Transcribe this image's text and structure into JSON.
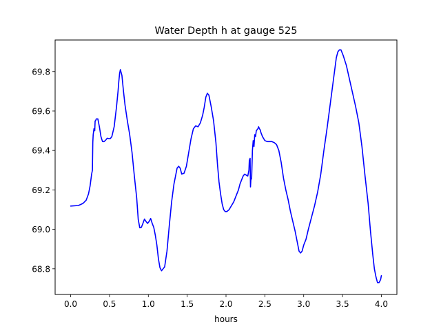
{
  "chart_data": {
    "type": "line",
    "title": "Water Depth h at gauge 525",
    "xlabel": "hours",
    "ylabel": "",
    "xlim": [
      -0.2,
      4.2
    ],
    "ylim": [
      68.67,
      69.96
    ],
    "xticks": [
      0.0,
      0.5,
      1.0,
      1.5,
      2.0,
      2.5,
      3.0,
      3.5,
      4.0
    ],
    "xtick_labels": [
      "0.0",
      "0.5",
      "1.0",
      "1.5",
      "2.0",
      "2.5",
      "3.0",
      "3.5",
      "4.0"
    ],
    "yticks": [
      68.8,
      69.0,
      69.2,
      69.4,
      69.6,
      69.8
    ],
    "ytick_labels": [
      "68.8",
      "69.0",
      "69.2",
      "69.4",
      "69.6",
      "69.8"
    ],
    "grid": false,
    "series": [
      {
        "name": "",
        "color": "#0000ff",
        "x": [
          0.0,
          0.1,
          0.16,
          0.2,
          0.23,
          0.25,
          0.27,
          0.28,
          0.285,
          0.29,
          0.3,
          0.31,
          0.315,
          0.32,
          0.33,
          0.35,
          0.37,
          0.39,
          0.41,
          0.43,
          0.45,
          0.47,
          0.49,
          0.51,
          0.53,
          0.56,
          0.59,
          0.61,
          0.62,
          0.63,
          0.64,
          0.66,
          0.68,
          0.7,
          0.73,
          0.76,
          0.79,
          0.82,
          0.85,
          0.87,
          0.89,
          0.91,
          0.93,
          0.95,
          0.97,
          0.99,
          1.01,
          1.03,
          1.05,
          1.07,
          1.09,
          1.11,
          1.13,
          1.15,
          1.17,
          1.19,
          1.21,
          1.24,
          1.27,
          1.3,
          1.33,
          1.35,
          1.37,
          1.39,
          1.41,
          1.43,
          1.46,
          1.49,
          1.52,
          1.55,
          1.58,
          1.61,
          1.64,
          1.67,
          1.7,
          1.72,
          1.74,
          1.76,
          1.78,
          1.81,
          1.84,
          1.87,
          1.89,
          1.91,
          1.93,
          1.95,
          1.97,
          1.99,
          2.01,
          2.04,
          2.07,
          2.1,
          2.13,
          2.16,
          2.18,
          2.2,
          2.22,
          2.24,
          2.26,
          2.28,
          2.29,
          2.295,
          2.3,
          2.31,
          2.315,
          2.32,
          2.33,
          2.34,
          2.35,
          2.36,
          2.37,
          2.38,
          2.39,
          2.4,
          2.41,
          2.42,
          2.43,
          2.44,
          2.45,
          2.47,
          2.5,
          2.53,
          2.56,
          2.59,
          2.62,
          2.65,
          2.68,
          2.71,
          2.74,
          2.77,
          2.8,
          2.83,
          2.86,
          2.89,
          2.92,
          2.94,
          2.96,
          2.98,
          3.0,
          3.03,
          3.06,
          3.1,
          3.14,
          3.18,
          3.22,
          3.26,
          3.3,
          3.33,
          3.36,
          3.38,
          3.4,
          3.42,
          3.44,
          3.46,
          3.48,
          3.51,
          3.55,
          3.59,
          3.63,
          3.67,
          3.71,
          3.75,
          3.79,
          3.83,
          3.86,
          3.89,
          3.91,
          3.93,
          3.95,
          3.97,
          3.99,
          4.0
        ],
        "y": [
          69.118,
          69.121,
          69.132,
          69.148,
          69.18,
          69.22,
          69.28,
          69.3,
          69.44,
          69.48,
          69.51,
          69.5,
          69.55,
          69.55,
          69.56,
          69.56,
          69.52,
          69.47,
          69.445,
          69.445,
          69.452,
          69.462,
          69.46,
          69.46,
          69.47,
          69.52,
          69.62,
          69.7,
          69.75,
          69.79,
          69.81,
          69.78,
          69.7,
          69.63,
          69.55,
          69.48,
          69.39,
          69.27,
          69.16,
          69.05,
          69.008,
          69.01,
          69.03,
          69.052,
          69.04,
          69.03,
          69.04,
          69.055,
          69.03,
          69.01,
          68.97,
          68.92,
          68.85,
          68.805,
          68.79,
          68.8,
          68.81,
          68.89,
          69.02,
          69.14,
          69.23,
          69.27,
          69.31,
          69.32,
          69.31,
          69.28,
          69.285,
          69.32,
          69.39,
          69.46,
          69.51,
          69.525,
          69.52,
          69.54,
          69.58,
          69.62,
          69.67,
          69.69,
          69.68,
          69.62,
          69.55,
          69.44,
          69.33,
          69.24,
          69.18,
          69.13,
          69.1,
          69.09,
          69.09,
          69.1,
          69.12,
          69.14,
          69.17,
          69.2,
          69.23,
          69.25,
          69.27,
          69.28,
          69.275,
          69.27,
          69.29,
          69.3,
          69.35,
          69.36,
          69.215,
          69.25,
          69.26,
          69.4,
          69.45,
          69.42,
          69.48,
          69.47,
          69.5,
          69.505,
          69.51,
          69.52,
          69.51,
          69.505,
          69.49,
          69.47,
          69.45,
          69.445,
          69.445,
          69.445,
          69.44,
          69.43,
          69.4,
          69.34,
          69.26,
          69.2,
          69.15,
          69.09,
          69.04,
          68.99,
          68.93,
          68.89,
          68.88,
          68.89,
          68.92,
          68.95,
          69.0,
          69.06,
          69.12,
          69.19,
          69.28,
          69.4,
          69.51,
          69.6,
          69.69,
          69.75,
          69.81,
          69.87,
          69.9,
          69.91,
          69.91,
          69.88,
          69.83,
          69.76,
          69.69,
          69.62,
          69.54,
          69.42,
          69.27,
          69.13,
          68.99,
          68.87,
          68.8,
          68.76,
          68.73,
          68.73,
          68.745,
          68.765
        ]
      }
    ]
  }
}
